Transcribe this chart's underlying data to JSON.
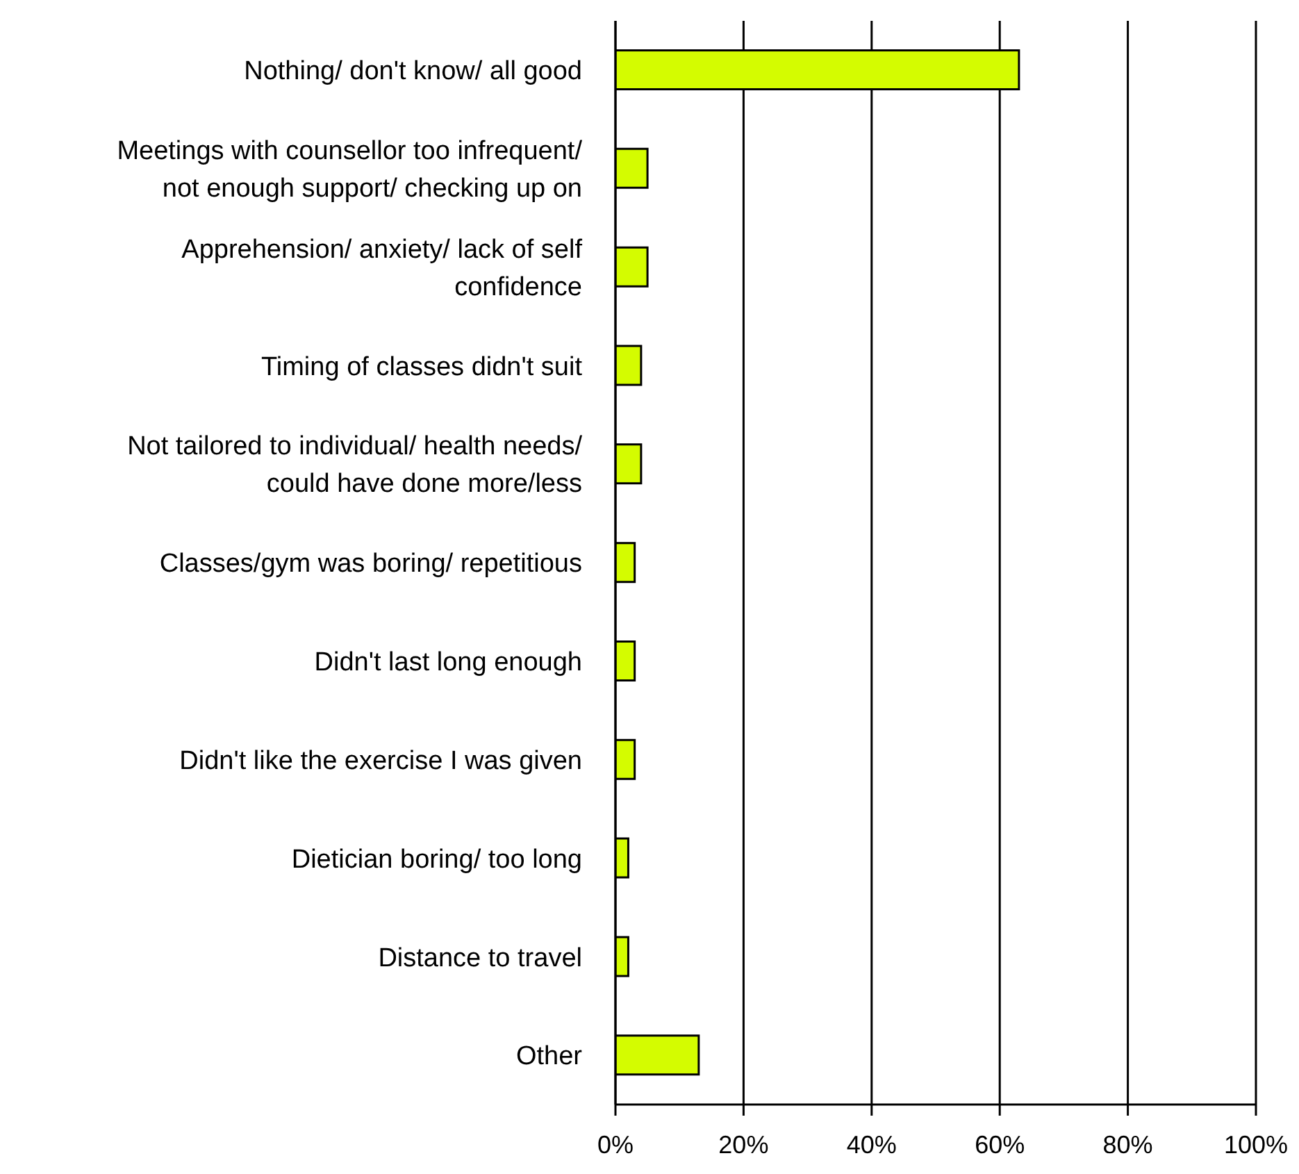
{
  "chart_data": {
    "type": "bar",
    "orientation": "horizontal",
    "categories": [
      "Nothing/ don't know/ all good",
      "Meetings with counsellor too infrequent/ not enough support/ checking up on",
      "Apprehension/ anxiety/ lack of self confidence",
      "Timing of classes didn't suit",
      "Not tailored to individual/ health needs/ could have done more/less",
      "Classes/gym was boring/ repetitious",
      "Didn't last long enough",
      "Didn't like the exercise I was given",
      "Dietician boring/ too long",
      "Distance to travel",
      "Other"
    ],
    "values": [
      63,
      5,
      5,
      4,
      4,
      3,
      3,
      3,
      2,
      2,
      13
    ],
    "color": "#d4fc00",
    "xlim": [
      0,
      100
    ],
    "xticks": [
      {
        "value": 0,
        "label": "0%"
      },
      {
        "value": 20,
        "label": "20%"
      },
      {
        "value": 40,
        "label": "40%"
      },
      {
        "value": 60,
        "label": "60%"
      },
      {
        "value": 80,
        "label": "80%"
      },
      {
        "value": 100,
        "label": "100%"
      }
    ],
    "grid": "x"
  }
}
